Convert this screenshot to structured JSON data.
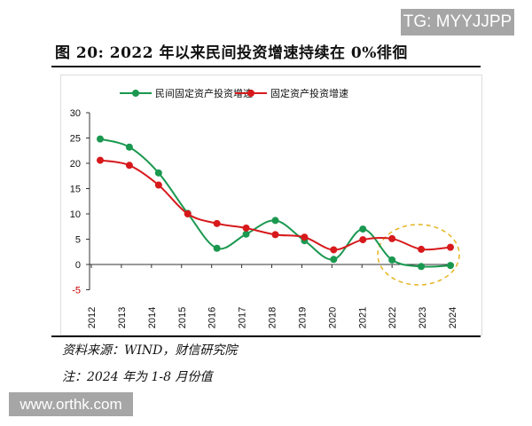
{
  "watermark_top": "TG: MYYJJPP",
  "watermark_bottom": "www.orthk.com",
  "figure_title": "图 20:  2022 年以来民间投资增速持续在 0%徘徊",
  "source": "资料来源：WIND，财信研究院",
  "note": "注：2024 年为 1-8 月份值",
  "chart_data": {
    "type": "line",
    "categories": [
      "2012",
      "2013",
      "2014",
      "2015",
      "2016",
      "2017",
      "2018",
      "2019",
      "2020",
      "2021",
      "2022",
      "2023",
      "2024"
    ],
    "series": [
      {
        "name": "民间固定资产投资增速",
        "color": "#1a9850",
        "values": [
          24.8,
          23.2,
          18.1,
          10.1,
          3.2,
          6.0,
          8.7,
          4.7,
          1.0,
          7.0,
          0.9,
          -0.4,
          -0.2
        ]
      },
      {
        "name": "固定资产投资增速",
        "color": "#d7191c",
        "values": [
          20.6,
          19.6,
          15.7,
          10.0,
          8.1,
          7.2,
          5.9,
          5.4,
          2.9,
          4.9,
          5.1,
          3.0,
          3.4
        ]
      }
    ],
    "ylim": [
      -5,
      30
    ],
    "yticks": [
      "30",
      "25",
      "20",
      "15",
      "10",
      "5",
      "0",
      "-5"
    ],
    "legend": "top",
    "grid": false,
    "annotation": "dashed yellow ellipse highlighting 2022-2024"
  }
}
